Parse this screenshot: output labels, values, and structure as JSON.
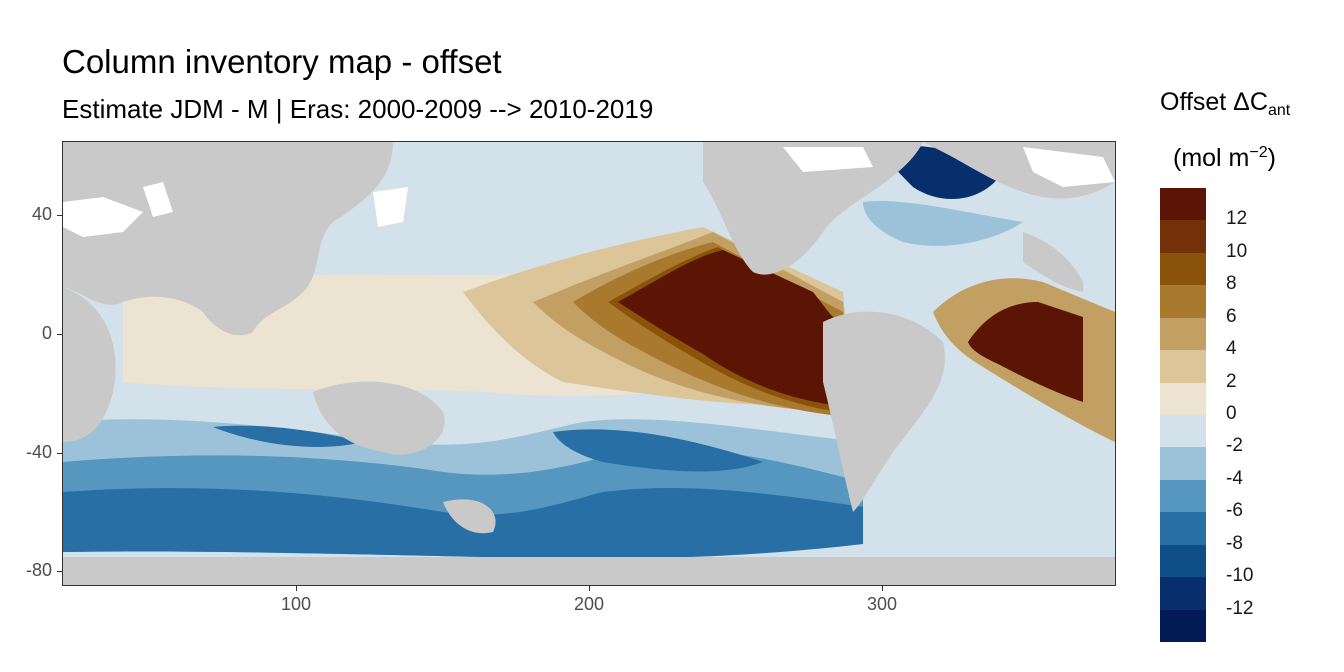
{
  "title": "Column inventory map - offset",
  "subtitle": "Estimate JDM - M | Eras: 2000-2009 --> 2010-2019",
  "axes": {
    "x_ticks": [
      "100",
      "200",
      "300"
    ],
    "y_ticks": [
      "40",
      "0",
      "-40",
      "-80"
    ],
    "xlim": [
      20,
      380
    ],
    "ylim": [
      -85,
      65
    ]
  },
  "legend": {
    "title_main": "Offset ΔC",
    "title_sub": "ant",
    "unit_main": "(mol m",
    "unit_sup": "−2",
    "unit_close": ")",
    "labels": [
      "12",
      "10",
      "8",
      "6",
      "4",
      "2",
      "0",
      "-2",
      "-4",
      "-6",
      "-8",
      "-10",
      "-12"
    ],
    "colors": [
      "#5a1504",
      "#743007",
      "#8b520a",
      "#a97a2e",
      "#c2a064",
      "#dcc599",
      "#ece3d1",
      "#d3e2ea",
      "#9cc2d9",
      "#5597be",
      "#276fa4",
      "#0e4f88",
      "#062f6c",
      "#021a55"
    ]
  },
  "map": {
    "land_color": "#c9c9c9",
    "ice_color": "#ffffff"
  }
}
